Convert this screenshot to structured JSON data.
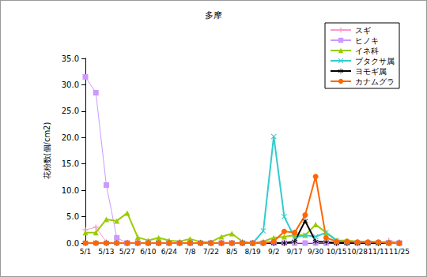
{
  "chart_data": {
    "type": "line",
    "title": "多摩",
    "y_label": "花粉数(個/cm2)",
    "categories": [
      "5/1",
      null,
      "5/13",
      null,
      "5/27",
      null,
      "6/10",
      null,
      "6/24",
      null,
      "7/8",
      null,
      "7/22",
      null,
      "8/5",
      null,
      "8/19",
      null,
      "9/2",
      null,
      "9/17",
      null,
      "9/30",
      null,
      "10/15",
      null,
      "10/28",
      null,
      "11/11",
      null,
      "11/25"
    ],
    "series": [
      {
        "name": "スギ",
        "color": "#ff99cc",
        "marker": "plus",
        "values": [
          2.5,
          3.0,
          0.2,
          0,
          0,
          0,
          0,
          0,
          0,
          0,
          0,
          0,
          0,
          0,
          0,
          0,
          0,
          0,
          0,
          0,
          0,
          0,
          0,
          0,
          0,
          0,
          0,
          0,
          0,
          0.5,
          0.2
        ]
      },
      {
        "name": "ヒノキ",
        "color": "#cc99ff",
        "marker": "square",
        "values": [
          31.5,
          28.5,
          11.0,
          1.0,
          0,
          0,
          0,
          0,
          0,
          0,
          0,
          0,
          0,
          0,
          0,
          0,
          0,
          0,
          0,
          0,
          0,
          0,
          0,
          0,
          0,
          0,
          0,
          0,
          0,
          0,
          0
        ]
      },
      {
        "name": "イネ科",
        "color": "#99cc00",
        "marker": "triangle",
        "values": [
          2.0,
          2.0,
          4.5,
          4.2,
          5.7,
          1.1,
          0.5,
          1.0,
          0.5,
          0.3,
          0.8,
          0.2,
          0.2,
          1.2,
          1.8,
          0.3,
          0,
          0.3,
          1.0,
          1.2,
          1.5,
          1.5,
          3.5,
          2.0,
          0.5,
          0.5,
          0.3,
          0.3,
          0.2,
          0.2,
          0
        ]
      },
      {
        "name": "ブタクサ属",
        "color": "#33cccc",
        "marker": "x",
        "values": [
          0,
          0,
          0,
          0,
          0,
          0,
          0,
          0,
          0,
          0,
          0,
          0,
          0,
          0,
          0,
          0,
          0,
          2.3,
          20.2,
          5.0,
          1.0,
          1.5,
          1.2,
          2.0,
          0.5,
          0.2,
          0,
          0,
          0,
          0,
          0
        ]
      },
      {
        "name": "ヨモギ属",
        "color": "#000000",
        "marker": "star",
        "values": [
          0,
          0,
          0,
          0,
          0,
          0,
          0,
          0,
          0,
          0,
          0,
          0,
          0,
          0,
          0,
          0,
          0,
          0,
          0,
          0,
          0.3,
          4.2,
          0.3,
          0.2,
          0,
          0,
          0,
          0,
          0,
          0,
          0
        ]
      },
      {
        "name": "カナムグラ",
        "color": "#ff6600",
        "marker": "circle",
        "values": [
          0,
          0,
          0,
          0,
          0,
          0,
          0,
          0,
          0,
          0,
          0,
          0,
          0,
          0,
          0,
          0,
          0,
          0,
          0.3,
          2.2,
          2.0,
          5.3,
          12.6,
          1.0,
          0.3,
          0.3,
          0.2,
          0.2,
          0.2,
          0,
          0
        ]
      }
    ],
    "ylim": [
      0,
      35
    ],
    "yticks": [
      {
        "value": 0,
        "label": "0.0"
      },
      {
        "value": 5,
        "label": "5.0"
      },
      {
        "value": 10,
        "label": "10.0"
      },
      {
        "value": 15,
        "label": "15.0"
      },
      {
        "value": 20,
        "label": "20.0"
      },
      {
        "value": 25,
        "label": "25.0"
      },
      {
        "value": 30,
        "label": "30.0"
      },
      {
        "value": 35,
        "label": "35.0"
      }
    ],
    "grid": false,
    "legend": "top-right"
  }
}
